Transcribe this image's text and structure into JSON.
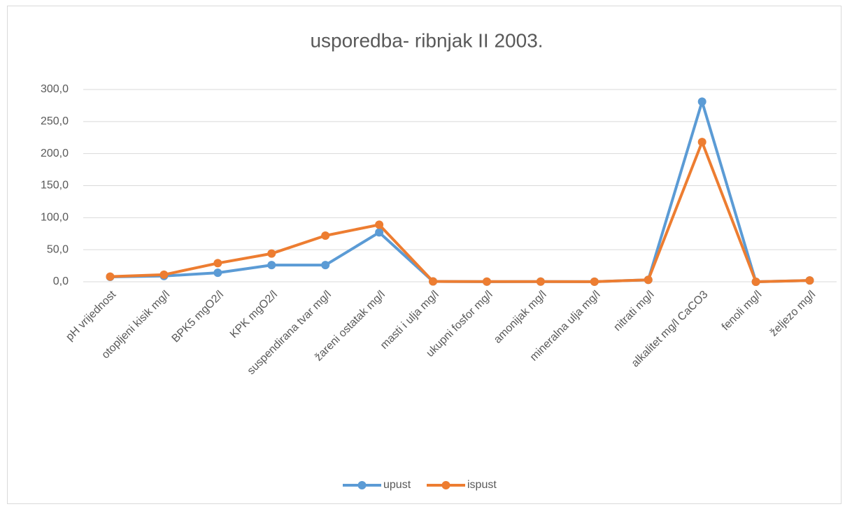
{
  "chart_data": {
    "type": "line",
    "title": "usporedba- ribnjak II 2003.",
    "categories": [
      "pH vrijednost",
      "otopljeni kisik mg/l",
      "BPK5 mgO2/l",
      "KPK mgO2/l",
      "suspendirana tvar mg/l",
      "žareni ostatak mg/l",
      "masti i ulja mg/l",
      "ukupni fosfor mg/l",
      "amonijak mg/l",
      "mineralna ulja mg/l",
      "nitrati mg/l",
      "alkalitet mg/l CaCO3",
      "fenoli mg/l",
      "željezo mg/l"
    ],
    "series": [
      {
        "name": "upust",
        "color": "#5b9bd5",
        "values": [
          7.6,
          9,
          14,
          26,
          26,
          77,
          0.5,
          0.2,
          0.3,
          0.1,
          3,
          281,
          0,
          2
        ]
      },
      {
        "name": "ispust",
        "color": "#ed7d31",
        "values": [
          8,
          11,
          29,
          44,
          72,
          89,
          0.5,
          0.3,
          0.3,
          0.1,
          3,
          218,
          0,
          2
        ]
      }
    ],
    "ylim": [
      0,
      300
    ],
    "yticks": [
      {
        "value": 0,
        "label": "0,0"
      },
      {
        "value": 50,
        "label": "50,0"
      },
      {
        "value": 100,
        "label": "100,0"
      },
      {
        "value": 150,
        "label": "150,0"
      },
      {
        "value": 200,
        "label": "200,0"
      },
      {
        "value": 250,
        "label": "250,0"
      },
      {
        "value": 300,
        "label": "300,0"
      }
    ],
    "grid": true,
    "legend": "bottom"
  }
}
